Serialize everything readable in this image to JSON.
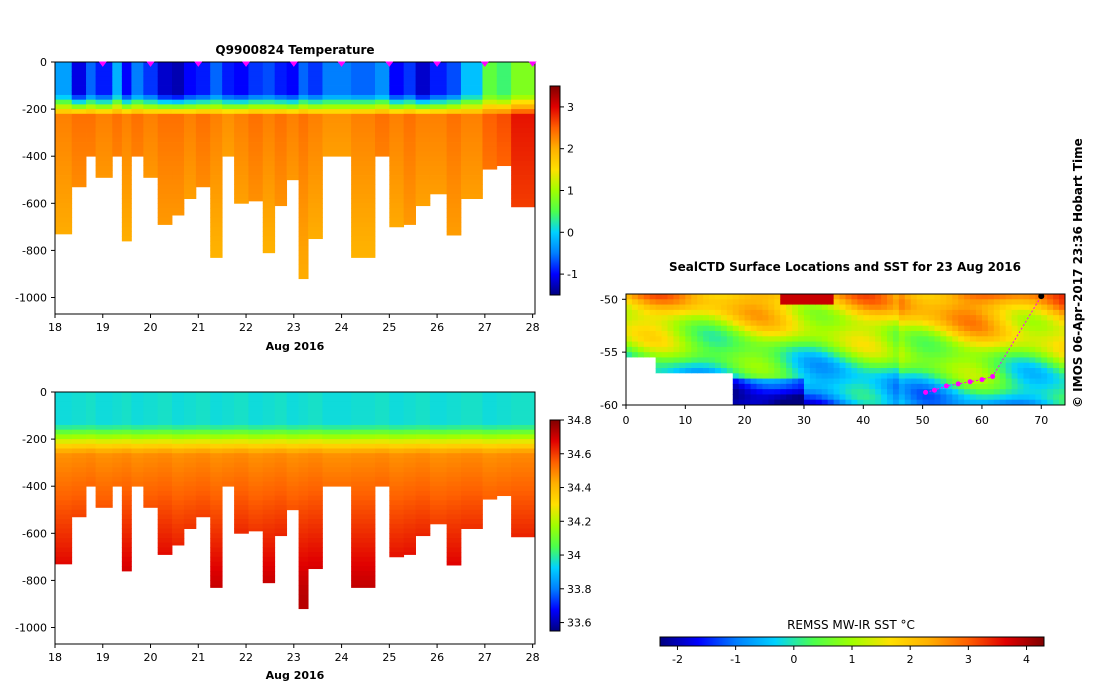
{
  "colors": {
    "jet": [
      "#00007f",
      "#0000ff",
      "#007fff",
      "#00d2ff",
      "#4cff4c",
      "#a0ff00",
      "#ffe000",
      "#ffb000",
      "#ff6000",
      "#e00000",
      "#800000"
    ],
    "mask": "#ffffff"
  },
  "chart_data": [
    {
      "type": "heatmap",
      "name": "temperature-section",
      "title": "Q9900824  Temperature",
      "xlabel": "Aug 2016",
      "ylabel": "",
      "x_ticks": [
        "18",
        "19",
        "20",
        "21",
        "22",
        "23",
        "24",
        "25",
        "26",
        "27",
        "28"
      ],
      "y_ticks": [
        "0",
        "-200",
        "-400",
        "-600",
        "-800",
        "-1000"
      ],
      "xlim": [
        18,
        28.05
      ],
      "ylim": [
        -1070,
        0
      ],
      "profile_marker_days": [
        19.0,
        20.0,
        21.0,
        22.0,
        23.0,
        24.0,
        25.0,
        26.0,
        27.0,
        28.0
      ],
      "colorbar": {
        "min": -1.5,
        "max": 3.5,
        "ticks": [
          "3",
          "2",
          "1",
          "0",
          "-1"
        ],
        "tick_values": [
          3,
          2,
          1,
          0,
          -1
        ]
      },
      "profiles": [
        {
          "t0": 18.0,
          "t1": 18.35,
          "surface": -0.3,
          "deep": 2.1,
          "max_depth": -730
        },
        {
          "t0": 18.35,
          "t1": 18.65,
          "surface": -1.1,
          "deep": 2.2,
          "max_depth": -530
        },
        {
          "t0": 18.65,
          "t1": 18.85,
          "surface": -0.6,
          "deep": 2.2,
          "max_depth": -400
        },
        {
          "t0": 18.85,
          "t1": 19.2,
          "surface": -0.9,
          "deep": 2.1,
          "max_depth": -490
        },
        {
          "t0": 19.2,
          "t1": 19.4,
          "surface": -0.2,
          "deep": 2.2,
          "max_depth": -400
        },
        {
          "t0": 19.4,
          "t1": 19.6,
          "surface": -1.0,
          "deep": 2.1,
          "max_depth": -760
        },
        {
          "t0": 19.6,
          "t1": 19.85,
          "surface": -0.5,
          "deep": 2.2,
          "max_depth": -400
        },
        {
          "t0": 19.85,
          "t1": 20.15,
          "surface": -0.8,
          "deep": 2.1,
          "max_depth": -490
        },
        {
          "t0": 20.15,
          "t1": 20.45,
          "surface": -1.2,
          "deep": 2.2,
          "max_depth": -690
        },
        {
          "t0": 20.45,
          "t1": 20.7,
          "surface": -1.3,
          "deep": 2.2,
          "max_depth": -650
        },
        {
          "t0": 20.7,
          "t1": 20.95,
          "surface": -1.0,
          "deep": 2.1,
          "max_depth": -580
        },
        {
          "t0": 20.95,
          "t1": 21.25,
          "surface": -0.9,
          "deep": 2.2,
          "max_depth": -530
        },
        {
          "t0": 21.25,
          "t1": 21.5,
          "surface": -0.6,
          "deep": 2.1,
          "max_depth": -830
        },
        {
          "t0": 21.5,
          "t1": 21.75,
          "surface": -0.9,
          "deep": 2.0,
          "max_depth": -400
        },
        {
          "t0": 21.75,
          "t1": 22.05,
          "surface": -1.0,
          "deep": 2.1,
          "max_depth": -600
        },
        {
          "t0": 22.05,
          "t1": 22.35,
          "surface": -0.8,
          "deep": 2.2,
          "max_depth": -590
        },
        {
          "t0": 22.35,
          "t1": 22.6,
          "surface": -0.7,
          "deep": 2.1,
          "max_depth": -810
        },
        {
          "t0": 22.6,
          "t1": 22.85,
          "surface": -0.9,
          "deep": 2.2,
          "max_depth": -610
        },
        {
          "t0": 22.85,
          "t1": 23.1,
          "surface": -1.0,
          "deep": 2.1,
          "max_depth": -500
        },
        {
          "t0": 23.1,
          "t1": 23.3,
          "surface": -0.6,
          "deep": 2.2,
          "max_depth": -920
        },
        {
          "t0": 23.3,
          "t1": 23.6,
          "surface": -0.8,
          "deep": 2.1,
          "max_depth": -750
        },
        {
          "t0": 23.6,
          "t1": 24.2,
          "surface": -0.5,
          "deep": 2.0,
          "max_depth": -400
        },
        {
          "t0": 24.2,
          "t1": 24.7,
          "surface": -0.6,
          "deep": 2.1,
          "max_depth": -830
        },
        {
          "t0": 24.7,
          "t1": 25.0,
          "surface": -0.4,
          "deep": 2.2,
          "max_depth": -400
        },
        {
          "t0": 25.0,
          "t1": 25.3,
          "surface": -1.0,
          "deep": 2.1,
          "max_depth": -700
        },
        {
          "t0": 25.3,
          "t1": 25.55,
          "surface": -0.8,
          "deep": 2.2,
          "max_depth": -690
        },
        {
          "t0": 25.55,
          "t1": 25.85,
          "surface": -1.2,
          "deep": 2.1,
          "max_depth": -610
        },
        {
          "t0": 25.85,
          "t1": 26.2,
          "surface": -0.9,
          "deep": 2.1,
          "max_depth": -560
        },
        {
          "t0": 26.2,
          "t1": 26.5,
          "surface": -0.7,
          "deep": 2.2,
          "max_depth": -735
        },
        {
          "t0": 26.5,
          "t1": 26.95,
          "surface": -0.1,
          "deep": 2.1,
          "max_depth": -580
        },
        {
          "t0": 26.95,
          "t1": 27.25,
          "surface": 0.6,
          "deep": 2.3,
          "max_depth": -455
        },
        {
          "t0": 27.25,
          "t1": 27.55,
          "surface": 0.4,
          "deep": 2.4,
          "max_depth": -440
        },
        {
          "t0": 27.55,
          "t1": 28.05,
          "surface": 0.8,
          "deep": 2.7,
          "max_depth": -615
        }
      ]
    },
    {
      "type": "heatmap",
      "name": "salinity-section",
      "title": "",
      "xlabel": "Aug 2016",
      "ylabel": "",
      "x_ticks": [
        "18",
        "19",
        "20",
        "21",
        "22",
        "23",
        "24",
        "25",
        "26",
        "27",
        "28"
      ],
      "y_ticks": [
        "0",
        "-200",
        "-400",
        "-600",
        "-800",
        "-1000"
      ],
      "xlim": [
        18,
        28.05
      ],
      "ylim": [
        -1070,
        0
      ],
      "colorbar": {
        "min": 33.55,
        "max": 34.8,
        "ticks": [
          "34.8",
          "34.6",
          "34.4",
          "34.2",
          "34",
          "33.8",
          "33.6"
        ],
        "tick_values": [
          34.8,
          34.6,
          34.4,
          34.2,
          34.0,
          33.8,
          33.6
        ]
      },
      "surface_value": 33.95,
      "deep_value": 34.72
    },
    {
      "type": "heatmap",
      "name": "sst-map",
      "title": "SealCTD Surface Locations and SST for 23 Aug 2016",
      "xlabel": "",
      "ylabel": "",
      "x_ticks": [
        "0",
        "10",
        "20",
        "30",
        "40",
        "50",
        "60",
        "70"
      ],
      "y_ticks": [
        "-50",
        "-55",
        "-60"
      ],
      "xlim": [
        0,
        74
      ],
      "ylim": [
        -60,
        -49.5
      ],
      "colorbar": {
        "label": "REMSS MW-IR SST °C",
        "min": -2.3,
        "max": 4.3,
        "ticks": [
          "-2",
          "-1",
          "0",
          "1",
          "2",
          "3",
          "4"
        ],
        "tick_values": [
          -2,
          -1,
          0,
          1,
          2,
          3,
          4
        ]
      },
      "track_positions": [
        [
          50.5,
          -58.8
        ],
        [
          52,
          -58.6
        ],
        [
          54,
          -58.2
        ],
        [
          56,
          -58.0
        ],
        [
          58,
          -57.8
        ],
        [
          60,
          -57.6
        ],
        [
          61.8,
          -57.3
        ],
        [
          70,
          -49.7
        ]
      ]
    }
  ],
  "credit": "© IMOS 06-Apr-2017 23:36 Hobart Time"
}
